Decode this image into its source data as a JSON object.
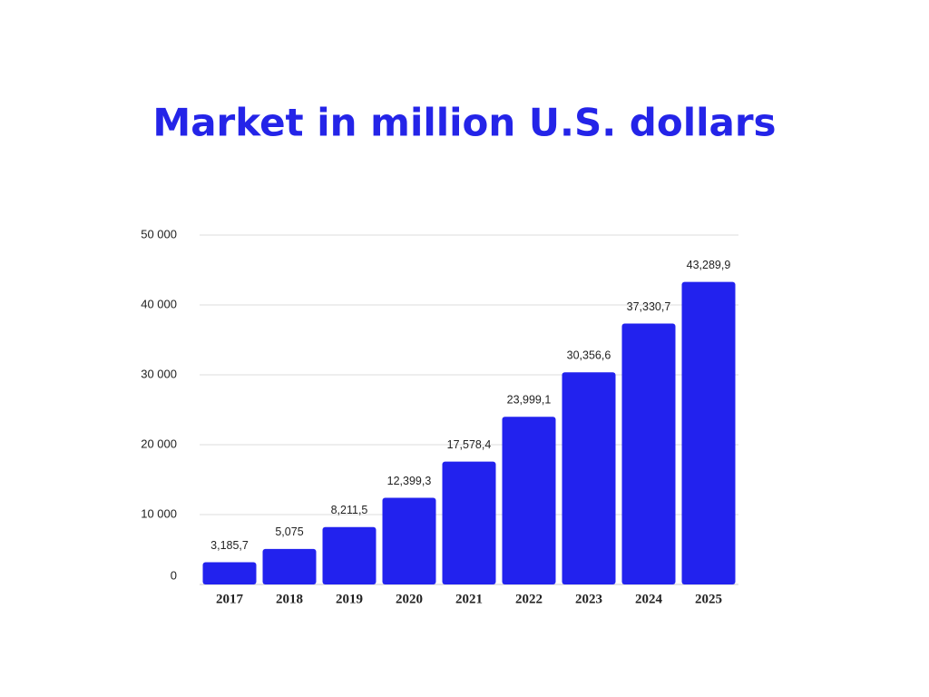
{
  "chart_data": {
    "type": "bar",
    "title": "Market in million U.S. dollars",
    "categories": [
      "2017",
      "2018",
      "2019",
      "2020",
      "2021",
      "2022",
      "2023",
      "2024",
      "2025"
    ],
    "values": [
      3185.7,
      5075,
      8211.5,
      12399.3,
      17578.4,
      23999.1,
      30356.6,
      37330.7,
      43289.9
    ],
    "value_labels": [
      "3,185,7",
      "5,075",
      "8,211,5",
      "12,399,3",
      "17,578,4",
      "23,999,1",
      "30,356,6",
      "37,330,7",
      "43,289,9"
    ],
    "color": "#2222ee",
    "ylim": [
      0,
      50000
    ],
    "yticks": [
      0,
      {
        "value": 10000,
        "label": "10 000"
      },
      {
        "value": 20000,
        "label": "20 000"
      },
      {
        "value": 30000,
        "label": "30 000"
      },
      {
        "value": 40000,
        "label": "40 000"
      },
      {
        "value": 50000,
        "label": "50 000"
      }
    ],
    "grid": true
  }
}
